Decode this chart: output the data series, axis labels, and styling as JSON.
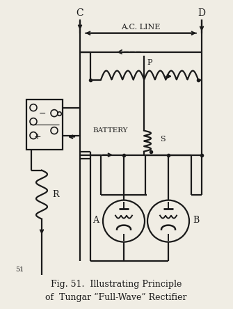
{
  "title": "Fig. 51.  Illustrating Principle\nof  Tungar “Full-Wave” Rectifier",
  "fig_number": "51",
  "bg_color": "#f0ede4",
  "line_color": "#1a1a1a",
  "label_C": "C",
  "label_D": "D",
  "label_P": "P",
  "label_S": "S",
  "label_A": "A",
  "label_B": "B",
  "label_R": "R",
  "label_AC": "A.C. LINE",
  "label_BATTERY": "BATTERY"
}
